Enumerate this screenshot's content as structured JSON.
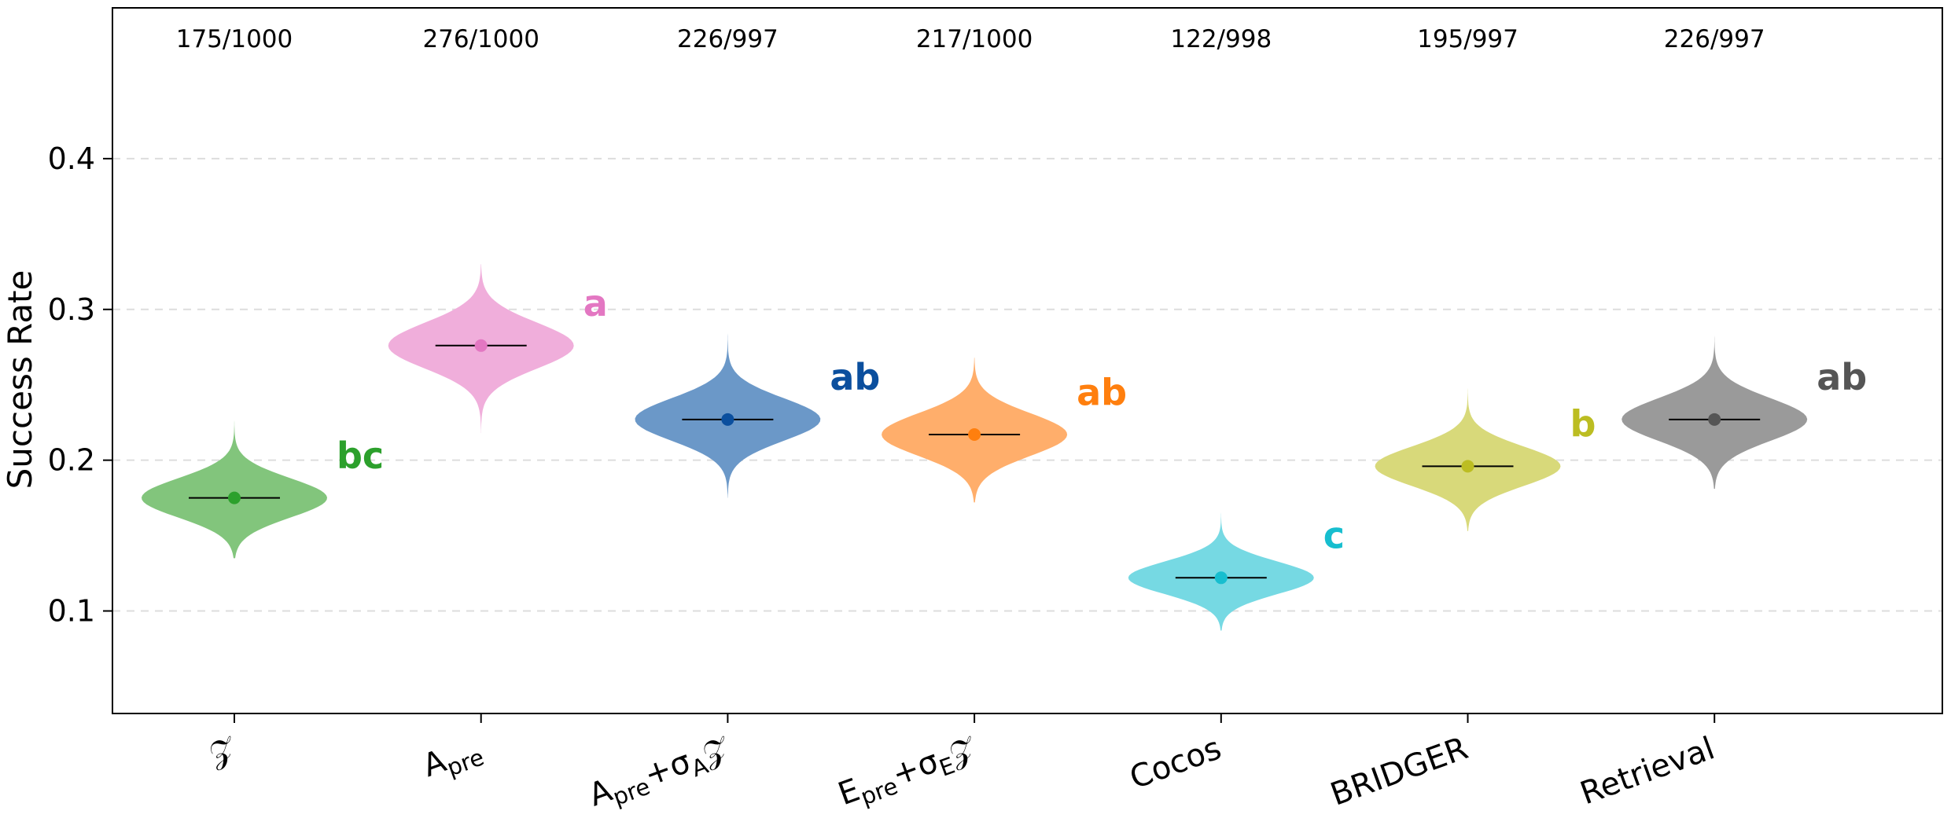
{
  "chart_data": {
    "type": "violin",
    "ylabel": "Success Rate",
    "ylim": [
      0.032,
      0.5
    ],
    "yticks": [
      0.1,
      0.2,
      0.3,
      0.4
    ],
    "ytick_labels": [
      "0.1",
      "0.2",
      "0.3",
      "0.4"
    ],
    "grid": "horizontal dashed",
    "categories": [
      {
        "label": "Z",
        "counts": "175/1000",
        "mean": 0.175,
        "group": "bc",
        "color": "#2ca02c",
        "fill": "#82c57c",
        "min": 0.135,
        "max": 0.228,
        "sd": 0.012
      },
      {
        "label": "Apre",
        "counts": "276/1000",
        "mean": 0.276,
        "group": "a",
        "color": "#e377c2",
        "fill": "#f0aedb",
        "min": 0.218,
        "max": 0.33,
        "sd": 0.014
      },
      {
        "label": "Apre+σAZ",
        "counts": "226/997",
        "mean": 0.227,
        "group": "ab",
        "color": "#0b4f9e",
        "fill": "#6b98c8",
        "min": 0.175,
        "max": 0.292,
        "sd": 0.013
      },
      {
        "label": "Epre+σEZ",
        "counts": "217/1000",
        "mean": 0.217,
        "group": "ab",
        "color": "#ff7f0e",
        "fill": "#ffae6b",
        "min": 0.172,
        "max": 0.268,
        "sd": 0.013
      },
      {
        "label": "Cocos",
        "counts": "122/998",
        "mean": 0.122,
        "group": "c",
        "color": "#17becf",
        "fill": "#76d9e3",
        "min": 0.087,
        "max": 0.168,
        "sd": 0.01
      },
      {
        "label": "BRIDGER",
        "counts": "195/997",
        "mean": 0.196,
        "group": "b",
        "color": "#bcbd22",
        "fill": "#d8d97a",
        "min": 0.153,
        "max": 0.248,
        "sd": 0.012
      },
      {
        "label": "Retrieval",
        "counts": "226/997",
        "mean": 0.227,
        "group": "ab",
        "color": "#555555",
        "fill": "#9a9a9a",
        "min": 0.181,
        "max": 0.292,
        "sd": 0.013
      }
    ]
  }
}
